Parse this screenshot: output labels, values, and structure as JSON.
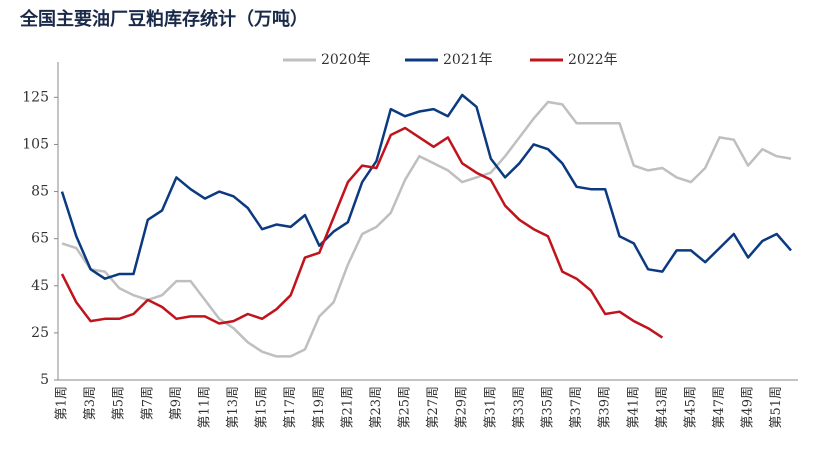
{
  "chart_data": {
    "type": "line",
    "title": "全国主要油厂豆粕库存统计（万吨）",
    "categories": [
      "第1周",
      null,
      "第3周",
      null,
      "第5周",
      null,
      "第7周",
      null,
      "第9周",
      null,
      "第11周",
      null,
      "第13周",
      null,
      "第15周",
      null,
      "第17周",
      null,
      "第19周",
      null,
      "第21周",
      null,
      "第23周",
      null,
      "第25周",
      null,
      "第27周",
      null,
      "第29周",
      null,
      "第31周",
      null,
      "第33周",
      null,
      "第35周",
      null,
      "第37周",
      null,
      "第39周",
      null,
      "第41周",
      null,
      "第43周",
      null,
      "第45周",
      null,
      "第47周",
      null,
      "第49周",
      null,
      "第51周",
      null
    ],
    "series": [
      {
        "name": "2020年",
        "color": "#bfbfbf",
        "values": [
          63,
          61,
          52,
          51,
          44,
          41,
          39,
          41,
          47,
          47,
          39,
          31,
          27,
          21,
          17,
          15,
          15,
          18,
          32,
          38,
          54,
          67,
          70,
          76,
          90,
          100,
          97,
          94,
          89,
          91,
          93,
          100,
          108,
          116,
          123,
          122,
          114,
          114,
          114,
          114,
          96,
          94,
          95,
          91,
          89,
          95,
          108,
          107,
          96,
          103,
          100,
          99
        ]
      },
      {
        "name": "2021年",
        "color": "#0c3a80",
        "values": [
          85,
          66,
          52,
          48,
          50,
          50,
          73,
          77,
          91,
          86,
          82,
          85,
          83,
          78,
          69,
          71,
          70,
          75,
          62,
          68,
          72,
          89,
          98,
          120,
          117,
          119,
          120,
          117,
          126,
          121,
          99,
          91,
          97,
          105,
          103,
          97,
          87,
          86,
          86,
          66,
          63,
          52,
          51,
          60,
          60,
          55,
          61,
          67,
          57,
          64,
          67,
          60
        ]
      },
      {
        "name": "2022年",
        "color": "#c0141c",
        "values": [
          50,
          38,
          30,
          31,
          31,
          33,
          39,
          36,
          31,
          32,
          32,
          29,
          30,
          33,
          31,
          35,
          41,
          57,
          59,
          74,
          89,
          96,
          95,
          109,
          112,
          108,
          104,
          108,
          97,
          93,
          90,
          79,
          73,
          69,
          66,
          51,
          48,
          43,
          33,
          34,
          30,
          27,
          23,
          null,
          null,
          null,
          null,
          null,
          null,
          null,
          null,
          null
        ]
      }
    ],
    "ylim": [
      5,
      140
    ],
    "yticks": [
      5,
      25,
      45,
      65,
      85,
      105,
      125
    ],
    "grid": false,
    "legend": "top"
  }
}
